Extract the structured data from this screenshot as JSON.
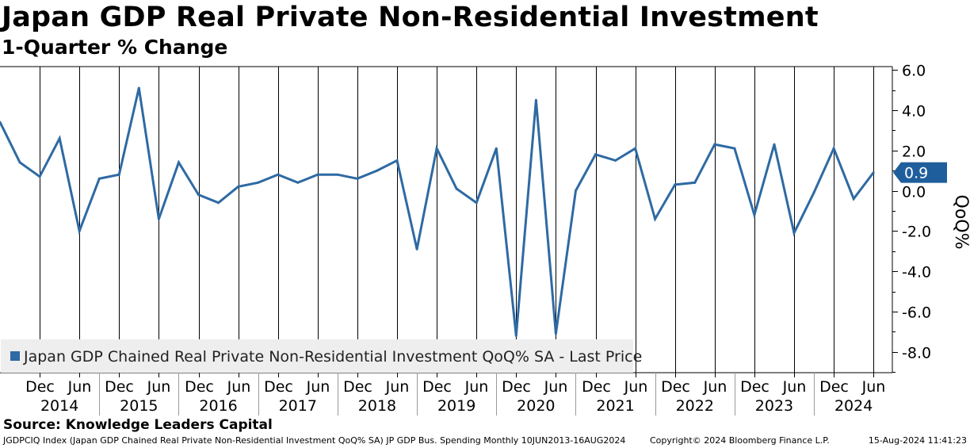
{
  "header": {
    "title": "Japan GDP Real Private Non-Residential Investment",
    "subtitle": "1-Quarter % Change"
  },
  "footer": {
    "source": "Source: Knowledge Leaders Capital",
    "ticker_info": "JGDPCIQ Index (Japan GDP Chained Real Private Non-Residential Investment QoQ% SA) JP GDP Bus. Spending  Monthly 10JUN2013-16AUG2024",
    "copyright": "Copyright© 2024 Bloomberg Finance L.P.",
    "timestamp": "15-Aug-2024 11:41:23"
  },
  "colors": {
    "series": "#2e6aa3",
    "grid": "#000000",
    "last_price_box": "#1f5e9c",
    "legend_bg": "#eeeeee"
  },
  "chart_data": {
    "type": "line",
    "title": "Japan GDP Real Private Non-Residential Investment",
    "subtitle": "1-Quarter % Change",
    "ylabel": "QoQ%",
    "ylim": [
      -9.2,
      6.0
    ],
    "yticks": [
      6.0,
      4.0,
      2.0,
      0.0,
      -2.0,
      -4.0,
      -6.0,
      -8.0
    ],
    "ytick_labels": [
      "6.0",
      "4.0",
      "2.0",
      "0.0",
      "-2.0",
      "-4.0",
      "-6.0",
      "-8.0"
    ],
    "x_tick_labels": [
      "Dec",
      "Jun",
      "Dec",
      "Jun",
      "Dec",
      "Jun",
      "Dec",
      "Jun",
      "Dec",
      "Jun",
      "Dec",
      "Jun",
      "Dec",
      "Jun",
      "Dec",
      "Jun",
      "Dec",
      "Jun",
      "Dec",
      "Jun",
      "Dec",
      "Jun"
    ],
    "x_year_labels": [
      "2014",
      "2015",
      "2016",
      "2017",
      "2018",
      "2019",
      "2020",
      "2021",
      "2022",
      "2023",
      "2024"
    ],
    "grid": "vertical",
    "legend": "bottom-left",
    "last_price_label": "0.9",
    "series": [
      {
        "name": "Japan GDP Chained Real Private Non-Residential Investment QoQ% SA - Last Price",
        "quarters": [
          "2013Q2",
          "2013Q3",
          "2013Q4",
          "2014Q1",
          "2014Q2",
          "2014Q3",
          "2014Q4",
          "2015Q1",
          "2015Q2",
          "2015Q3",
          "2015Q4",
          "2016Q1",
          "2016Q2",
          "2016Q3",
          "2016Q4",
          "2017Q1",
          "2017Q2",
          "2017Q3",
          "2017Q4",
          "2018Q1",
          "2018Q2",
          "2018Q3",
          "2018Q4",
          "2019Q1",
          "2019Q2",
          "2019Q3",
          "2019Q4",
          "2020Q1",
          "2020Q2",
          "2020Q3",
          "2020Q4",
          "2021Q1",
          "2021Q2",
          "2021Q3",
          "2021Q4",
          "2022Q1",
          "2022Q2",
          "2022Q3",
          "2022Q4",
          "2023Q1",
          "2023Q2",
          "2023Q3",
          "2023Q4",
          "2024Q1",
          "2024Q2"
        ],
        "values": [
          3.4,
          1.4,
          0.7,
          2.6,
          -2.0,
          0.6,
          0.8,
          5.1,
          -1.4,
          1.4,
          -0.2,
          -0.6,
          0.2,
          0.4,
          0.8,
          0.4,
          0.8,
          0.8,
          0.6,
          1.0,
          1.5,
          -2.9,
          2.1,
          0.1,
          -0.6,
          2.1,
          -7.2,
          4.5,
          -7.1,
          0.0,
          1.8,
          1.5,
          2.1,
          -1.4,
          0.3,
          0.4,
          2.3,
          2.1,
          -1.2,
          2.3,
          -2.1,
          -0.1,
          2.1,
          -0.4,
          0.9
        ]
      }
    ]
  }
}
